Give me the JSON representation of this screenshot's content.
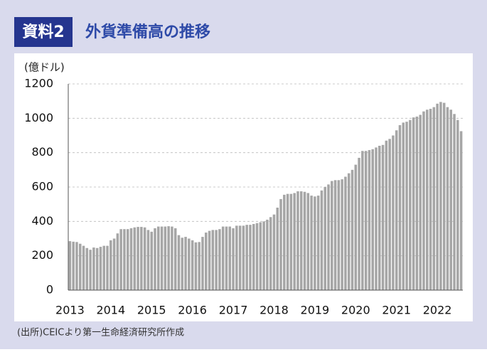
{
  "header": {
    "label": "資料2"
  },
  "chart_data": {
    "type": "bar",
    "title": "外貨準備高の推移",
    "y_label": "(億ドル)",
    "source": "(出所)CEICより第一生命経済研究所作成",
    "categories": [
      "2013",
      null,
      null,
      null,
      null,
      null,
      null,
      null,
      null,
      null,
      null,
      null,
      "2014",
      null,
      null,
      null,
      null,
      null,
      null,
      null,
      null,
      null,
      null,
      null,
      "2015",
      null,
      null,
      null,
      null,
      null,
      null,
      null,
      null,
      null,
      null,
      null,
      "2016",
      null,
      null,
      null,
      null,
      null,
      null,
      null,
      null,
      null,
      null,
      null,
      "2017",
      null,
      null,
      null,
      null,
      null,
      null,
      null,
      null,
      null,
      null,
      null,
      "2018",
      null,
      null,
      null,
      null,
      null,
      null,
      null,
      null,
      null,
      null,
      null,
      "2019",
      null,
      null,
      null,
      null,
      null,
      null,
      null,
      null,
      null,
      null,
      null,
      "2020",
      null,
      null,
      null,
      null,
      null,
      null,
      null,
      null,
      null,
      null,
      null,
      "2021",
      null,
      null,
      null,
      null,
      null,
      null,
      null,
      null,
      null,
      null,
      null,
      "2022",
      null,
      null,
      null,
      null,
      null,
      null,
      null
    ],
    "values": [
      285,
      282,
      280,
      270,
      258,
      245,
      235,
      248,
      245,
      252,
      258,
      258,
      290,
      300,
      330,
      355,
      355,
      355,
      360,
      365,
      368,
      368,
      365,
      350,
      340,
      360,
      370,
      370,
      370,
      372,
      370,
      360,
      320,
      305,
      310,
      300,
      290,
      278,
      280,
      310,
      335,
      345,
      350,
      350,
      355,
      370,
      370,
      370,
      360,
      375,
      375,
      375,
      380,
      380,
      385,
      390,
      395,
      400,
      410,
      425,
      440,
      480,
      530,
      555,
      560,
      560,
      565,
      575,
      575,
      572,
      565,
      550,
      545,
      550,
      580,
      600,
      615,
      635,
      640,
      640,
      645,
      660,
      680,
      700,
      730,
      770,
      810,
      810,
      815,
      820,
      830,
      840,
      845,
      870,
      880,
      900,
      930,
      960,
      975,
      980,
      990,
      1005,
      1010,
      1020,
      1040,
      1050,
      1055,
      1065,
      1085,
      1095,
      1090,
      1065,
      1050,
      1025,
      990,
      925
    ],
    "color": "#a6a6a6",
    "ylim": [
      0,
      1200
    ],
    "yticks": [
      0,
      200,
      400,
      600,
      800,
      1000,
      1200
    ],
    "grid": true
  }
}
